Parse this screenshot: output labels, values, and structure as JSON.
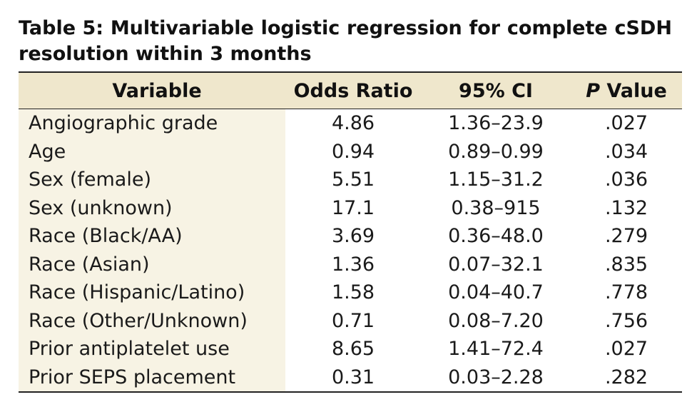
{
  "caption": {
    "words_line1": [
      "Table 5:",
      "Multivariable",
      "logistic",
      "regression",
      "for",
      "complete",
      "cSDH"
    ],
    "line2": "resolution within 3 months"
  },
  "table": {
    "headers": {
      "variable": "Variable",
      "odds_ratio": "Odds Ratio",
      "ci": "95% CI",
      "p_italic": "P",
      "p_rest": " Value"
    },
    "rows": [
      {
        "variable": "Angiographic grade",
        "odds_ratio": "4.86",
        "ci": "1.36–23.9",
        "p": ".027"
      },
      {
        "variable": "Age",
        "odds_ratio": "0.94",
        "ci": "0.89–0.99",
        "p": ".034"
      },
      {
        "variable": "Sex (female)",
        "odds_ratio": "5.51",
        "ci": "1.15–31.2",
        "p": ".036"
      },
      {
        "variable": "Sex (unknown)",
        "odds_ratio": "17.1",
        "ci": "0.38–915",
        "p": ".132"
      },
      {
        "variable": "Race (Black/AA)",
        "odds_ratio": "3.69",
        "ci": "0.36–48.0",
        "p": ".279"
      },
      {
        "variable": "Race (Asian)",
        "odds_ratio": "1.36",
        "ci": "0.07–32.1",
        "p": ".835"
      },
      {
        "variable": "Race (Hispanic/Latino)",
        "odds_ratio": "1.58",
        "ci": "0.04–40.7",
        "p": ".778"
      },
      {
        "variable": "Race (Other/Unknown)",
        "odds_ratio": "0.71",
        "ci": "0.08–7.20",
        "p": ".756"
      },
      {
        "variable": "Prior antiplatelet use",
        "odds_ratio": "8.65",
        "ci": "1.41–72.4",
        "p": ".027"
      },
      {
        "variable": "Prior SEPS placement",
        "odds_ratio": "0.31",
        "ci": "0.03–2.28",
        "p": ".282"
      }
    ]
  },
  "colors": {
    "header_bg": "#efe7cc",
    "variable_column_bg": "#f7f3e4",
    "rule": "#222222"
  }
}
